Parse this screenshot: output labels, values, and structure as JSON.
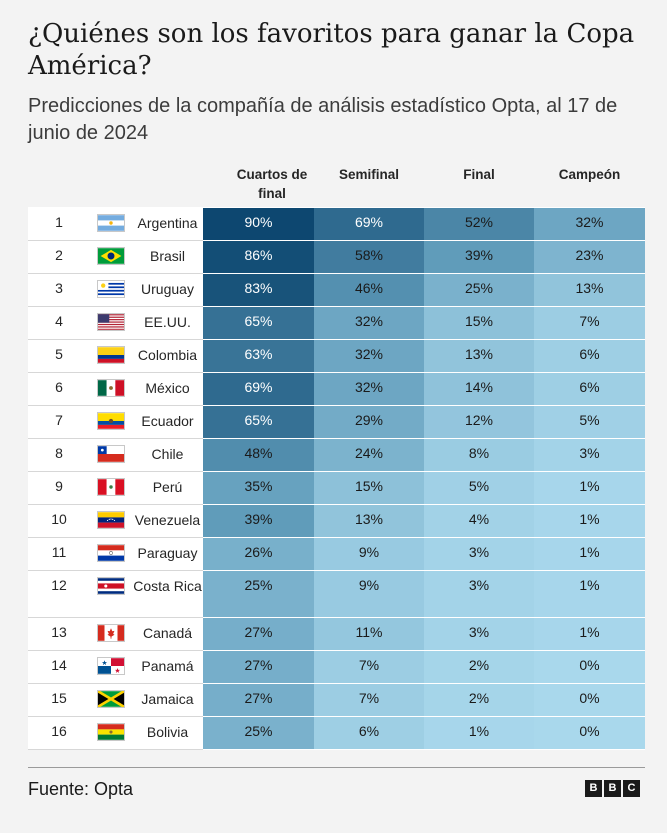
{
  "title": "¿Quiénes son los favoritos para ganar la Copa América?",
  "subtitle": "Predicciones de la compañía de análisis estadístico Opta, al 17 de junio de 2024",
  "footer": {
    "source": "Fuente: Opta",
    "logo": [
      "B",
      "B",
      "C"
    ]
  },
  "chart_data": {
    "type": "table",
    "columns": [
      "Cuartos de final",
      "Semifinal",
      "Final",
      "Campeón"
    ],
    "value_unit": "%",
    "rows": [
      {
        "rank": "1",
        "team": "Argentina",
        "flag": "flag-argentina-icon",
        "values": [
          90,
          69,
          52,
          32
        ]
      },
      {
        "rank": "2",
        "team": "Brasil",
        "flag": "flag-brazil-icon",
        "values": [
          86,
          58,
          39,
          23
        ]
      },
      {
        "rank": "3",
        "team": "Uruguay",
        "flag": "flag-uruguay-icon",
        "values": [
          83,
          46,
          25,
          13
        ]
      },
      {
        "rank": "4",
        "team": "EE.UU.",
        "flag": "flag-usa-icon",
        "values": [
          65,
          32,
          15,
          7
        ]
      },
      {
        "rank": "5",
        "team": "Colombia",
        "flag": "flag-colombia-icon",
        "values": [
          63,
          32,
          13,
          6
        ]
      },
      {
        "rank": "6",
        "team": "México",
        "flag": "flag-mexico-icon",
        "values": [
          69,
          32,
          14,
          6
        ]
      },
      {
        "rank": "7",
        "team": "Ecuador",
        "flag": "flag-ecuador-icon",
        "values": [
          65,
          29,
          12,
          5
        ]
      },
      {
        "rank": "8",
        "team": "Chile",
        "flag": "flag-chile-icon",
        "values": [
          48,
          24,
          8,
          3
        ]
      },
      {
        "rank": "9",
        "team": "Perú",
        "flag": "flag-peru-icon",
        "values": [
          35,
          15,
          5,
          1
        ]
      },
      {
        "rank": "10",
        "team": "Venezuela",
        "flag": "flag-venezuela-icon",
        "values": [
          39,
          13,
          4,
          1
        ]
      },
      {
        "rank": "11",
        "team": "Paraguay",
        "flag": "flag-paraguay-icon",
        "values": [
          26,
          9,
          3,
          1
        ]
      },
      {
        "rank": "12",
        "team": "Costa Rica",
        "flag": "flag-costa-rica-icon",
        "values": [
          25,
          9,
          3,
          1
        ]
      },
      {
        "rank": "13",
        "team": "Canadá",
        "flag": "flag-canada-icon",
        "values": [
          27,
          11,
          3,
          1
        ]
      },
      {
        "rank": "14",
        "team": "Panamá",
        "flag": "flag-panama-icon",
        "values": [
          27,
          7,
          2,
          0
        ]
      },
      {
        "rank": "15",
        "team": "Jamaica",
        "flag": "flag-jamaica-icon",
        "values": [
          27,
          7,
          2,
          0
        ]
      },
      {
        "rank": "16",
        "team": "Bolivia",
        "flag": "flag-bolivia-icon",
        "values": [
          25,
          6,
          1,
          0
        ]
      }
    ],
    "color_scale": {
      "low": "#a9d8ec",
      "mid": "#5e9ab9",
      "high": "#0d4770"
    }
  }
}
